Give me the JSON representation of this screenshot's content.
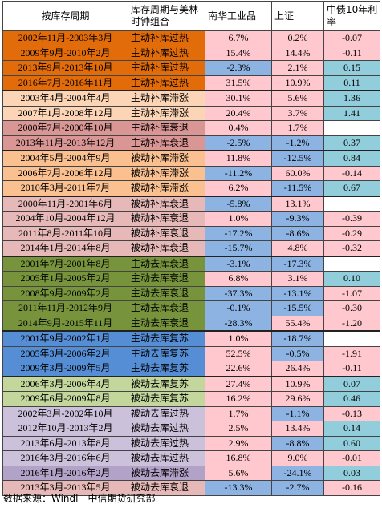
{
  "colors": {
    "orange": "#e36c0a",
    "peach_light": "#fbd5b5",
    "rose": "#d99694",
    "tan": "#fac090",
    "pink_light": "#e6b9b8",
    "olive": "#77933c",
    "blue": "#558ed5",
    "green_light": "#c3d69b",
    "lavender": "#ccc1da",
    "purple": "#b3a2c7",
    "cell_pink": "#ffc7ce",
    "cell_blue": "#8db3e2",
    "cell_teal": "#92cddc",
    "cell_white": "#ffffff"
  },
  "headers": {
    "period": "按库存周期",
    "phase": "库存周期与美林时钟组合",
    "nanhua": "南华工业品",
    "shanghai": "上证",
    "bond": "中债10年利率"
  },
  "rows": [
    {
      "period": "2002年11月-2003年3月",
      "phase": "主动补库过热",
      "nanhua": "6.7%",
      "shanghai": "0.2%",
      "bond": "-0.07",
      "rc": "orange",
      "nc": "cell_pink",
      "sc": "cell_pink",
      "bc": "cell_pink"
    },
    {
      "period": "2009年9月-2010年2月",
      "phase": "主动补库过热",
      "nanhua": "15.4%",
      "shanghai": "14.4%",
      "bond": "-0.11",
      "rc": "orange",
      "nc": "cell_pink",
      "sc": "cell_pink",
      "bc": "cell_pink"
    },
    {
      "period": "2013年9月-2013年10月",
      "phase": "主动补库过热",
      "nanhua": "-2.3%",
      "shanghai": "2.1%",
      "bond": "0.15",
      "rc": "orange",
      "nc": "cell_blue",
      "sc": "cell_pink",
      "bc": "cell_teal"
    },
    {
      "period": "2016年7月-2016年11月",
      "phase": "主动补库过热",
      "nanhua": "31.5%",
      "shanghai": "10.9%",
      "bond": "0.11",
      "rc": "orange",
      "nc": "cell_pink",
      "sc": "cell_pink",
      "bc": "cell_teal",
      "end": true
    },
    {
      "period": "2003年4月-2004年4月",
      "phase": "主动补库滞涨",
      "nanhua": "30.1%",
      "shanghai": "5.6%",
      "bond": "1.36",
      "rc": "peach_light",
      "nc": "cell_pink",
      "sc": "cell_pink",
      "bc": "cell_teal"
    },
    {
      "period": "2007年1月-2008年12月",
      "phase": "主动补库滞涨",
      "nanhua": "20.4%",
      "shanghai": "3.7%",
      "bond": "1.41",
      "rc": "peach_light",
      "nc": "cell_pink",
      "sc": "cell_pink",
      "bc": "cell_teal"
    },
    {
      "period": "2000年7月-2000年10月",
      "phase": "主动补库衰退",
      "nanhua": "0.4%",
      "shanghai": "1.7%",
      "bond": "",
      "rc": "rose",
      "nc": "cell_pink",
      "sc": "cell_pink",
      "bc": "cell_white"
    },
    {
      "period": "2013年11月-2013年12月",
      "phase": "主动补库衰退",
      "nanhua": "-2.5%",
      "shanghai": "-1.2%",
      "bond": "0.37",
      "rc": "rose",
      "nc": "cell_blue",
      "sc": "cell_blue",
      "bc": "cell_teal",
      "end": true
    },
    {
      "period": "2004年5月-2004年9月",
      "phase": "被动补库滞涨",
      "nanhua": "11.8%",
      "shanghai": "-12.5%",
      "bond": "0.84",
      "rc": "tan",
      "nc": "cell_pink",
      "sc": "cell_blue",
      "bc": "cell_teal"
    },
    {
      "period": "2006年7月-2006年12月",
      "phase": "被动补库滞涨",
      "nanhua": "-11.2%",
      "shanghai": "60.0%",
      "bond": "-0.14",
      "rc": "tan",
      "nc": "cell_blue",
      "sc": "cell_pink",
      "bc": "cell_pink"
    },
    {
      "period": "2010年3月-2011年7月",
      "phase": "被动补库滞涨",
      "nanhua": "6.2%",
      "shanghai": "-11.5%",
      "bond": "0.67",
      "rc": "tan",
      "nc": "cell_pink",
      "sc": "cell_blue",
      "bc": "cell_teal",
      "end": true
    },
    {
      "period": "2000年11月-2001年6月",
      "phase": "被动补库衰退",
      "nanhua": "-5.8%",
      "shanghai": "13.1%",
      "bond": "",
      "rc": "pink_light",
      "nc": "cell_blue",
      "sc": "cell_pink",
      "bc": "cell_white"
    },
    {
      "period": "2004年10月-2004年12月",
      "phase": "被动补库衰退",
      "nanhua": "1.0%",
      "shanghai": "-9.3%",
      "bond": "-0.39",
      "rc": "pink_light",
      "nc": "cell_pink",
      "sc": "cell_blue",
      "bc": "cell_pink"
    },
    {
      "period": "2011年8月-2011年10月",
      "phase": "被动补库衰退",
      "nanhua": "-17.2%",
      "shanghai": "-8.6%",
      "bond": "-0.29",
      "rc": "pink_light",
      "nc": "cell_blue",
      "sc": "cell_blue",
      "bc": "cell_pink"
    },
    {
      "period": "2014年1月-2014年8月",
      "phase": "被动补库衰退",
      "nanhua": "-15.7%",
      "shanghai": "4.8%",
      "bond": "-0.32",
      "rc": "pink_light",
      "nc": "cell_blue",
      "sc": "cell_pink",
      "bc": "cell_pink",
      "end": true
    },
    {
      "period": "2001年7月-2001年8月",
      "phase": "主动去库衰退",
      "nanhua": "-3.1%",
      "shanghai": "-17.3%",
      "bond": "",
      "rc": "olive",
      "nc": "cell_blue",
      "sc": "cell_blue",
      "bc": "cell_white"
    },
    {
      "period": "2005年1月-2005年2月",
      "phase": "主动去库衰退",
      "nanhua": "6.8%",
      "shanghai": "3.1%",
      "bond": "0.10",
      "rc": "olive",
      "nc": "cell_pink",
      "sc": "cell_pink",
      "bc": "cell_teal"
    },
    {
      "period": "2008年9月-2009年2月",
      "phase": "主动去库衰退",
      "nanhua": "-37.3%",
      "shanghai": "-13.1%",
      "bond": "-1.07",
      "rc": "olive",
      "nc": "cell_blue",
      "sc": "cell_blue",
      "bc": "cell_pink"
    },
    {
      "period": "2011年11月-2012年9月",
      "phase": "主动去库衰退",
      "nanhua": "-0.1%",
      "shanghai": "-15.5%",
      "bond": "-0.30",
      "rc": "olive",
      "nc": "cell_blue",
      "sc": "cell_blue",
      "bc": "cell_pink"
    },
    {
      "period": "2014年9月-2015年11月",
      "phase": "主动去库衰退",
      "nanhua": "-28.3%",
      "shanghai": "55.4%",
      "bond": "-1.20",
      "rc": "olive",
      "nc": "cell_blue",
      "sc": "cell_pink",
      "bc": "cell_pink",
      "end": true
    },
    {
      "period": "2001年9月-2002年1月",
      "phase": "主动去库复苏",
      "nanhua": "1.0%",
      "shanghai": "-18.7%",
      "bond": "",
      "rc": "blue",
      "nc": "cell_pink",
      "sc": "cell_blue",
      "bc": "cell_white"
    },
    {
      "period": "2005年3月-2006年2月",
      "phase": "主动去库复苏",
      "nanhua": "52.5%",
      "shanghai": "-0.5%",
      "bond": "-1.91",
      "rc": "blue",
      "nc": "cell_pink",
      "sc": "cell_blue",
      "bc": "cell_pink"
    },
    {
      "period": "2009年3月-2009年5月",
      "phase": "主动去库复苏",
      "nanhua": "22.6%",
      "shanghai": "26.4%",
      "bond": "-0.11",
      "rc": "blue",
      "nc": "cell_pink",
      "sc": "cell_pink",
      "bc": "cell_pink",
      "end": true
    },
    {
      "period": "2006年3月-2006年4月",
      "phase": "被动去库复苏",
      "nanhua": "27.4%",
      "shanghai": "10.9%",
      "bond": "0.07",
      "rc": "green_light",
      "nc": "cell_pink",
      "sc": "cell_pink",
      "bc": "cell_teal"
    },
    {
      "period": "2009年6月-2009年8月",
      "phase": "被动去库复苏",
      "nanhua": "16.2%",
      "shanghai": "29.6%",
      "bond": "0.46",
      "rc": "green_light",
      "nc": "cell_pink",
      "sc": "cell_pink",
      "bc": "cell_teal"
    },
    {
      "period": "2002年3月-2002年10月",
      "phase": "被动去库过热",
      "nanhua": "1.7%",
      "shanghai": "-1.1%",
      "bond": "-0.13",
      "rc": "lavender",
      "nc": "cell_pink",
      "sc": "cell_blue",
      "bc": "cell_pink"
    },
    {
      "period": "2012年10月-2013年2月",
      "phase": "被动去库过热",
      "nanhua": "2.5%",
      "shanghai": "13.4%",
      "bond": "0.14",
      "rc": "lavender",
      "nc": "cell_pink",
      "sc": "cell_pink",
      "bc": "cell_teal"
    },
    {
      "period": "2013年6月-2013年8月",
      "phase": "被动去库过热",
      "nanhua": "2.9%",
      "shanghai": "-8.8%",
      "bond": "0.60",
      "rc": "lavender",
      "nc": "cell_pink",
      "sc": "cell_blue",
      "bc": "cell_teal"
    },
    {
      "period": "2016年3月-2016年6月",
      "phase": "被动去库过热",
      "nanhua": "16.8%",
      "shanghai": "9.0%",
      "bond": "-0.01",
      "rc": "lavender",
      "nc": "cell_pink",
      "sc": "cell_pink",
      "bc": "cell_pink"
    },
    {
      "period": "2016年1月-2016年2月",
      "phase": "被动去库滞涨",
      "nanhua": "5.6%",
      "shanghai": "-24.1%",
      "bond": "0.03",
      "rc": "purple",
      "nc": "cell_pink",
      "sc": "cell_blue",
      "bc": "cell_teal"
    },
    {
      "period": "2013年3月-2013年5月",
      "phase": "被动去库衰退",
      "nanhua": "-13.3%",
      "shanghai": "-2.7%",
      "bond": "-0.16",
      "rc": "pink_light",
      "nc": "cell_blue",
      "sc": "cell_blue",
      "bc": "cell_pink"
    }
  ],
  "footer": "数据来源：Windl　中信期货研究部"
}
